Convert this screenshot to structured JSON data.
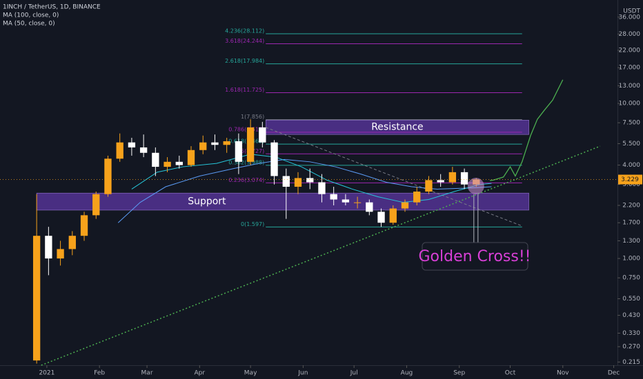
{
  "chart_data": {
    "type": "candlestick",
    "title": "1INCH / TetherUS, 1D, BINANCE",
    "indicators": [
      "MA (100, close, 0)",
      "MA (50, close, 0)"
    ],
    "y_unit": "USDT",
    "log_scale": true,
    "xlim": [
      -27.6,
      336.2
    ],
    "ylim": [
      0.205,
      46.4
    ],
    "xticks": [
      {
        "value": 0,
        "label": "2021"
      },
      {
        "value": 31,
        "label": "Feb"
      },
      {
        "value": 59,
        "label": "Mar"
      },
      {
        "value": 90,
        "label": "Apr"
      },
      {
        "value": 120,
        "label": "May"
      },
      {
        "value": 151,
        "label": "Jun"
      },
      {
        "value": 181,
        "label": "Jul"
      },
      {
        "value": 212,
        "label": "Aug"
      },
      {
        "value": 243,
        "label": "Sep"
      },
      {
        "value": 273,
        "label": "Oct"
      },
      {
        "value": 304,
        "label": "Nov"
      },
      {
        "value": 334,
        "label": "Dec"
      }
    ],
    "yticks": [
      {
        "value": 36,
        "label": "36.000"
      },
      {
        "value": 28,
        "label": "28.000"
      },
      {
        "value": 22,
        "label": "22.000"
      },
      {
        "value": 17,
        "label": "17.000"
      },
      {
        "value": 13,
        "label": "13.000"
      },
      {
        "value": 10,
        "label": "10.000"
      },
      {
        "value": 7.5,
        "label": "7.500"
      },
      {
        "value": 5.5,
        "label": "5.500"
      },
      {
        "value": 4,
        "label": "4.000"
      },
      {
        "value": 3,
        "label": "3.000"
      },
      {
        "value": 2.2,
        "label": "2.200"
      },
      {
        "value": 1.7,
        "label": "1.700"
      },
      {
        "value": 1.3,
        "label": "1.300"
      },
      {
        "value": 1,
        "label": "1.000"
      },
      {
        "value": 0.75,
        "label": "0.750"
      },
      {
        "value": 0.55,
        "label": "0.550"
      },
      {
        "value": 0.43,
        "label": "0.430"
      },
      {
        "value": 0.33,
        "label": "0.330"
      },
      {
        "value": 0.27,
        "label": "0.270"
      },
      {
        "value": 0.215,
        "label": "0.215"
      }
    ],
    "up_color": "#f7a21b",
    "down_color": "#ffffff",
    "ohlc": {
      "x": [
        -6,
        1,
        8,
        15,
        22,
        29,
        36,
        43,
        50,
        57,
        64,
        71,
        78,
        85,
        92,
        99,
        106,
        113,
        120,
        127,
        134,
        141,
        148,
        155,
        162,
        169,
        176,
        183,
        190,
        197,
        204,
        211,
        218,
        225,
        232,
        239,
        246,
        253
      ],
      "open": [
        0.22,
        1.4,
        1.0,
        1.15,
        1.4,
        1.9,
        2.6,
        4.4,
        5.6,
        5.2,
        4.8,
        3.9,
        4.2,
        4.0,
        5.0,
        5.6,
        5.4,
        5.7,
        4.2,
        7.0,
        5.6,
        3.4,
        2.9,
        3.3,
        3.1,
        2.6,
        2.4,
        2.3,
        2.3,
        2.0,
        1.7,
        2.1,
        2.3,
        2.7,
        3.2,
        3.1,
        3.6,
        3.0
      ],
      "high": [
        2.6,
        1.6,
        1.3,
        1.5,
        2.0,
        2.7,
        4.6,
        6.4,
        6.0,
        6.3,
        5.2,
        4.5,
        4.6,
        5.3,
        6.2,
        6.3,
        6.0,
        6.4,
        7.9,
        7.6,
        5.8,
        3.8,
        3.6,
        3.8,
        3.5,
        2.9,
        2.6,
        2.5,
        2.4,
        2.1,
        2.2,
        2.4,
        2.9,
        3.4,
        3.5,
        3.9,
        3.8,
        3.3
      ],
      "low": [
        0.21,
        0.78,
        0.9,
        1.05,
        1.3,
        1.8,
        2.5,
        4.2,
        4.6,
        4.5,
        3.4,
        3.6,
        3.8,
        3.9,
        4.7,
        5.0,
        4.8,
        3.5,
        4.0,
        5.2,
        3.0,
        1.8,
        2.6,
        2.8,
        2.3,
        2.2,
        2.2,
        2.1,
        1.9,
        1.6,
        1.65,
        2.0,
        2.2,
        2.6,
        2.9,
        3.0,
        2.8,
        2.9
      ],
      "close": [
        1.4,
        1.0,
        1.15,
        1.4,
        1.9,
        2.6,
        4.4,
        5.6,
        5.2,
        4.8,
        3.9,
        4.2,
        4.0,
        5.0,
        5.6,
        5.4,
        5.7,
        4.2,
        7.0,
        5.6,
        3.4,
        2.9,
        3.3,
        3.1,
        2.6,
        2.4,
        2.3,
        2.3,
        2.0,
        1.7,
        2.1,
        2.3,
        2.7,
        3.2,
        3.1,
        3.6,
        3.0,
        3.229
      ]
    },
    "last_price": 3.229,
    "series": [
      {
        "color": "#5b9cf6",
        "x": [
          42,
          55,
          70,
          90,
          110,
          125,
          140,
          155,
          170,
          185,
          200,
          215,
          230,
          250,
          262
        ],
        "values": [
          1.7,
          2.3,
          2.9,
          3.4,
          3.8,
          4.1,
          4.35,
          4.2,
          3.9,
          3.5,
          3.1,
          2.9,
          2.8,
          2.85,
          2.9
        ]
      },
      {
        "color": "#26c6da",
        "x": [
          50,
          65,
          80,
          100,
          120,
          135,
          150,
          165,
          180,
          195,
          210,
          225,
          240,
          255,
          262
        ],
        "values": [
          2.8,
          3.6,
          3.9,
          4.1,
          4.7,
          4.5,
          3.9,
          3.2,
          2.8,
          2.5,
          2.3,
          2.4,
          2.7,
          3.0,
          3.05
        ]
      }
    ],
    "fib": {
      "x": [
        129,
        280
      ],
      "levels": [
        {
          "label": "4.236(28.112)",
          "price": 28.112,
          "color": "#26a69a"
        },
        {
          "label": "3.618(24.244)",
          "price": 24.244,
          "color": "#9c27b0"
        },
        {
          "label": "2.618(17.984)",
          "price": 17.984,
          "color": "#26a69a"
        },
        {
          "label": "1.618(11.725)",
          "price": 11.725,
          "color": "#9c27b0"
        },
        {
          "label": "1(7.856)",
          "price": 7.856,
          "color": "#787b86"
        },
        {
          "label": "0.786(6.517)",
          "price": 6.517,
          "color": "#9c27b0"
        },
        {
          "label": "0.618(5.465)",
          "price": 5.465,
          "color": "#26a69a"
        },
        {
          "label": "0.5(4.727)",
          "price": 4.727,
          "color": "#9c27b0"
        },
        {
          "label": "0.382(3.988)",
          "price": 3.988,
          "color": "#26a69a"
        },
        {
          "label": "0.236(3.074)",
          "price": 3.074,
          "color": "#9c27b0"
        },
        {
          "label": "0(1.597)",
          "price": 1.597,
          "color": "#26a69a"
        }
      ]
    },
    "zones": [
      {
        "label": "Resistance",
        "x": [
          129,
          284
        ],
        "prices": [
          6.3,
          7.8
        ]
      },
      {
        "label": "Support",
        "x": [
          -6,
          284
        ],
        "prices": [
          2.05,
          2.64
        ]
      }
    ],
    "trendline": {
      "x": [
        -3.3,
        326
      ],
      "values": [
        0.205,
        5.3
      ],
      "color": "#4caf50"
    },
    "downtrend": {
      "x": [
        129,
        280
      ],
      "values": [
        7.0,
        1.62
      ]
    },
    "projection": {
      "x": [
        261,
        263,
        269,
        273,
        276,
        280,
        285,
        289,
        293,
        298,
        304
      ],
      "values": [
        3.18,
        3.2,
        3.35,
        3.9,
        3.4,
        4.2,
        6.2,
        7.9,
        9.0,
        10.5,
        14.2
      ],
      "color": "#4caf50"
    },
    "annotation": {
      "text": "Golden Cross!!",
      "x": 252.8,
      "price": 2.93
    }
  }
}
